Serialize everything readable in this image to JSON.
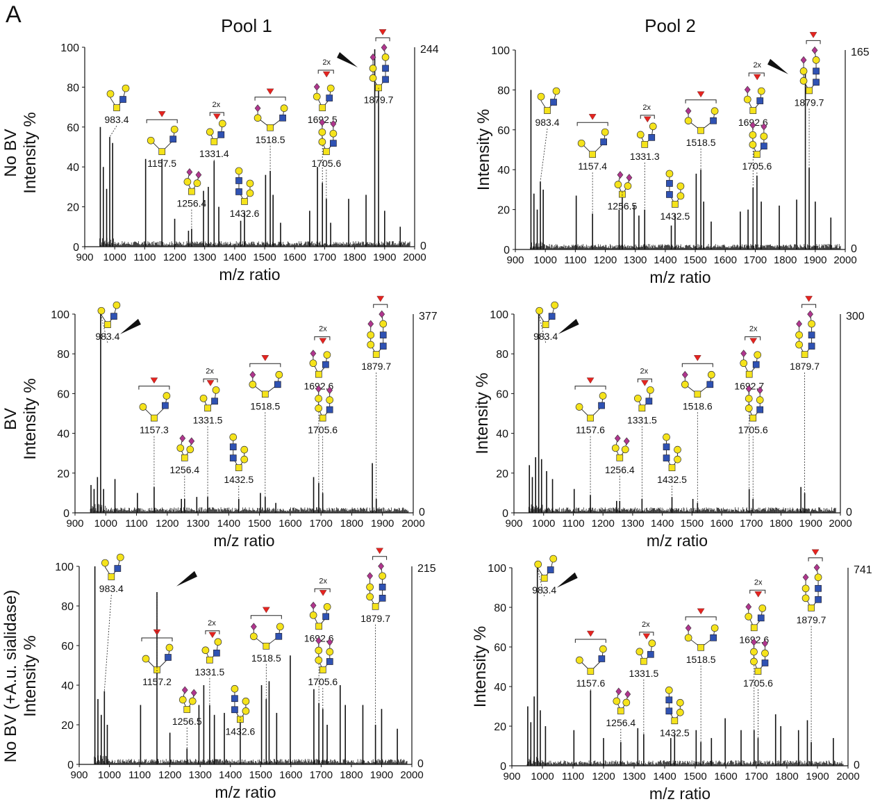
{
  "figure": {
    "panel_letter": "A",
    "columns": [
      "Pool 1",
      "Pool 2"
    ],
    "rows": [
      {
        "condition": "No BV",
        "ylabel": "Intensity %"
      },
      {
        "condition": "BV",
        "ylabel": "Intensity %"
      },
      {
        "condition": "No BV (+A.u. sialidase)",
        "ylabel": "Intensity %"
      }
    ]
  },
  "colors": {
    "spectrum": "#111111",
    "hexose": "#f5e31b",
    "hexnac": "#2f52b3",
    "fucose": "#e5231f",
    "sialic_acid": "#b0358e"
  },
  "chart_data": [
    {
      "type": "line",
      "panel": "Pool 1 - No BV",
      "xlabel": "m/z ratio",
      "ylabel": "Intensity %",
      "xlim": [
        900,
        2000
      ],
      "ylim": [
        0,
        100
      ],
      "xticks": [
        900,
        1000,
        1100,
        1200,
        1300,
        1400,
        1500,
        1600,
        1700,
        1800,
        1900,
        2000
      ],
      "yticks": [
        0,
        20,
        40,
        60,
        80,
        100
      ],
      "right_axis": {
        "max_label": "244",
        "min_label": "0"
      },
      "highlight_peak": 1879.7,
      "peaks": [
        [
          952,
          60
        ],
        [
          962,
          40
        ],
        [
          973,
          29
        ],
        [
          983.4,
          55
        ],
        [
          993,
          52
        ],
        [
          1103,
          44
        ],
        [
          1157.5,
          44
        ],
        [
          1200,
          14
        ],
        [
          1246,
          8
        ],
        [
          1256.4,
          9
        ],
        [
          1296,
          28
        ],
        [
          1312,
          30
        ],
        [
          1331.4,
          43
        ],
        [
          1347,
          20
        ],
        [
          1420,
          13
        ],
        [
          1432.6,
          17
        ],
        [
          1503,
          36
        ],
        [
          1518.5,
          38
        ],
        [
          1528,
          26
        ],
        [
          1553,
          12
        ],
        [
          1650,
          18
        ],
        [
          1676,
          40
        ],
        [
          1692.5,
          32
        ],
        [
          1705.6,
          24
        ],
        [
          1720,
          12
        ],
        [
          1780,
          24
        ],
        [
          1838,
          26
        ],
        [
          1867,
          99
        ],
        [
          1879.7,
          80
        ],
        [
          1900,
          18
        ],
        [
          1952,
          10
        ]
      ],
      "labels": [
        {
          "mz": 983.4,
          "text": "983.4",
          "ann": ""
        },
        {
          "mz": 1157.5,
          "text": "1157.5",
          "ann": ""
        },
        {
          "mz": 1256.4,
          "text": "1256.4",
          "ann": ""
        },
        {
          "mz": 1331.4,
          "text": "1331.4",
          "ann": "2x"
        },
        {
          "mz": 1432.6,
          "text": "1432.6",
          "ann": ""
        },
        {
          "mz": 1518.5,
          "text": "1518.5",
          "ann": ""
        },
        {
          "mz": 1692.5,
          "text": "1692.5",
          "ann": "2x"
        },
        {
          "mz": 1705.6,
          "text": "1705.6",
          "ann": ""
        },
        {
          "mz": 1879.7,
          "text": "1879.7",
          "ann": ""
        }
      ]
    },
    {
      "type": "line",
      "panel": "Pool 2 - No BV",
      "xlabel": "m/z ratio",
      "ylabel": "Intensity %",
      "xlim": [
        900,
        2000
      ],
      "ylim": [
        0,
        100
      ],
      "xticks": [
        900,
        1000,
        1100,
        1200,
        1300,
        1400,
        1500,
        1600,
        1700,
        1800,
        1900,
        2000
      ],
      "yticks": [
        0,
        20,
        40,
        60,
        80,
        100
      ],
      "right_axis": {
        "max_label": "165",
        "min_label": "0"
      },
      "highlight_peak": 1879.7,
      "peaks": [
        [
          952,
          80
        ],
        [
          962,
          28
        ],
        [
          973,
          20
        ],
        [
          983.4,
          34
        ],
        [
          993,
          30
        ],
        [
          1103,
          27
        ],
        [
          1157.4,
          18
        ],
        [
          1246,
          20
        ],
        [
          1256.5,
          29
        ],
        [
          1296,
          22
        ],
        [
          1312,
          17
        ],
        [
          1331.3,
          20
        ],
        [
          1420,
          12
        ],
        [
          1432.5,
          18
        ],
        [
          1503,
          38
        ],
        [
          1518.5,
          40
        ],
        [
          1528,
          24
        ],
        [
          1553,
          14
        ],
        [
          1650,
          19
        ],
        [
          1676,
          20
        ],
        [
          1692.6,
          31
        ],
        [
          1705.6,
          37
        ],
        [
          1720,
          24
        ],
        [
          1780,
          22
        ],
        [
          1838,
          25
        ],
        [
          1867,
          90
        ],
        [
          1879.7,
          41
        ],
        [
          1900,
          24
        ],
        [
          1952,
          16
        ]
      ],
      "labels": [
        {
          "mz": 983.4,
          "text": "983.4",
          "ann": ""
        },
        {
          "mz": 1157.4,
          "text": "1157.4",
          "ann": ""
        },
        {
          "mz": 1256.5,
          "text": "1256.5",
          "ann": ""
        },
        {
          "mz": 1331.3,
          "text": "1331.3",
          "ann": "2x"
        },
        {
          "mz": 1432.5,
          "text": "1432.5",
          "ann": ""
        },
        {
          "mz": 1518.5,
          "text": "1518.5",
          "ann": ""
        },
        {
          "mz": 1692.6,
          "text": "1692.6",
          "ann": "2x"
        },
        {
          "mz": 1705.6,
          "text": "1705.6",
          "ann": ""
        },
        {
          "mz": 1879.7,
          "text": "1879.7",
          "ann": ""
        }
      ]
    },
    {
      "type": "line",
      "panel": "Pool 1 - BV",
      "xlabel": "m/z ratio",
      "ylabel": "Intensity %",
      "xlim": [
        900,
        2000
      ],
      "ylim": [
        0,
        100
      ],
      "xticks": [
        900,
        1000,
        1100,
        1200,
        1300,
        1400,
        1500,
        1600,
        1700,
        1800,
        1900,
        2000
      ],
      "yticks": [
        0,
        20,
        40,
        60,
        80,
        100
      ],
      "right_axis": {
        "max_label": "377",
        "min_label": "0"
      },
      "highlight_peak": 983.4,
      "peaks": [
        [
          952,
          14
        ],
        [
          962,
          12
        ],
        [
          973,
          18
        ],
        [
          983.4,
          100
        ],
        [
          993,
          12
        ],
        [
          1030,
          17
        ],
        [
          1103,
          10
        ],
        [
          1157.3,
          13
        ],
        [
          1246,
          7
        ],
        [
          1256.4,
          7
        ],
        [
          1296,
          8
        ],
        [
          1331.5,
          8
        ],
        [
          1432.5,
          7
        ],
        [
          1503,
          10
        ],
        [
          1518.5,
          8
        ],
        [
          1553,
          5
        ],
        [
          1676,
          18
        ],
        [
          1692.6,
          15
        ],
        [
          1705.6,
          10
        ],
        [
          1867,
          25
        ],
        [
          1879.7,
          7
        ]
      ],
      "labels": [
        {
          "mz": 983.4,
          "text": "983.4",
          "ann": ""
        },
        {
          "mz": 1157.3,
          "text": "1157.3",
          "ann": ""
        },
        {
          "mz": 1256.4,
          "text": "1256.4",
          "ann": ""
        },
        {
          "mz": 1331.5,
          "text": "1331.5",
          "ann": "2x"
        },
        {
          "mz": 1432.5,
          "text": "1432.5",
          "ann": ""
        },
        {
          "mz": 1518.5,
          "text": "1518.5",
          "ann": ""
        },
        {
          "mz": 1692.6,
          "text": "1692.6",
          "ann": "2x"
        },
        {
          "mz": 1705.6,
          "text": "1705.6",
          "ann": ""
        },
        {
          "mz": 1879.7,
          "text": "1879.7",
          "ann": ""
        }
      ]
    },
    {
      "type": "line",
      "panel": "Pool 2 - BV",
      "xlabel": "m/z ratio",
      "ylabel": "Intensity %",
      "xlim": [
        900,
        2000
      ],
      "ylim": [
        0,
        100
      ],
      "xticks": [
        900,
        1000,
        1100,
        1200,
        1300,
        1400,
        1500,
        1600,
        1700,
        1800,
        1900,
        2000
      ],
      "yticks": [
        0,
        20,
        40,
        60,
        80,
        100
      ],
      "right_axis": {
        "max_label": "300",
        "min_label": "0"
      },
      "highlight_peak": 983.4,
      "peaks": [
        [
          952,
          24
        ],
        [
          962,
          18
        ],
        [
          973,
          28
        ],
        [
          983.4,
          100
        ],
        [
          993,
          27
        ],
        [
          1010,
          21
        ],
        [
          1030,
          17
        ],
        [
          1103,
          12
        ],
        [
          1157.6,
          9
        ],
        [
          1246,
          6
        ],
        [
          1256.4,
          6
        ],
        [
          1331.5,
          7
        ],
        [
          1432.5,
          8
        ],
        [
          1503,
          7
        ],
        [
          1518.6,
          5
        ],
        [
          1692.7,
          12
        ],
        [
          1705.6,
          7
        ],
        [
          1867,
          13
        ],
        [
          1879.7,
          10
        ]
      ],
      "labels": [
        {
          "mz": 983.4,
          "text": "983.4",
          "ann": ""
        },
        {
          "mz": 1157.6,
          "text": "1157.6",
          "ann": ""
        },
        {
          "mz": 1256.4,
          "text": "1256.4",
          "ann": ""
        },
        {
          "mz": 1331.5,
          "text": "1331.5",
          "ann": "2x"
        },
        {
          "mz": 1432.5,
          "text": "1432.5",
          "ann": ""
        },
        {
          "mz": 1518.6,
          "text": "1518.6",
          "ann": ""
        },
        {
          "mz": 1692.7,
          "text": "1692.7",
          "ann": "2x"
        },
        {
          "mz": 1705.6,
          "text": "1705.6",
          "ann": ""
        },
        {
          "mz": 1879.7,
          "text": "1879.7",
          "ann": ""
        }
      ]
    },
    {
      "type": "line",
      "panel": "Pool 1 - No BV (+A.u. sialidase)",
      "xlabel": "m/z ratio",
      "ylabel": "Intensity %",
      "xlim": [
        900,
        2000
      ],
      "ylim": [
        0,
        100
      ],
      "xticks": [
        900,
        1000,
        1100,
        1200,
        1300,
        1400,
        1500,
        1600,
        1700,
        1800,
        1900,
        2000
      ],
      "yticks": [
        0,
        20,
        40,
        60,
        80,
        100
      ],
      "right_axis": {
        "max_label": "215",
        "min_label": "0"
      },
      "highlight_peak": 1157.2,
      "peaks": [
        [
          952,
          100
        ],
        [
          962,
          33
        ],
        [
          973,
          25
        ],
        [
          983.4,
          37
        ],
        [
          993,
          20
        ],
        [
          1103,
          30
        ],
        [
          1157.2,
          87
        ],
        [
          1200,
          16
        ],
        [
          1256.5,
          8
        ],
        [
          1296,
          30
        ],
        [
          1312,
          40
        ],
        [
          1331.5,
          30
        ],
        [
          1347,
          25
        ],
        [
          1380,
          26
        ],
        [
          1432.6,
          24
        ],
        [
          1503,
          40
        ],
        [
          1518.5,
          33
        ],
        [
          1528,
          42
        ],
        [
          1553,
          26
        ],
        [
          1598,
          55
        ],
        [
          1676,
          38
        ],
        [
          1692.6,
          31
        ],
        [
          1705.6,
          28
        ],
        [
          1720,
          20
        ],
        [
          1763,
          40
        ],
        [
          1780,
          30
        ],
        [
          1838,
          30
        ],
        [
          1879.7,
          20
        ],
        [
          1900,
          28
        ],
        [
          1952,
          18
        ]
      ],
      "labels": [
        {
          "mz": 983.4,
          "text": "983.4",
          "ann": ""
        },
        {
          "mz": 1157.2,
          "text": "1157.2",
          "ann": ""
        },
        {
          "mz": 1256.5,
          "text": "1256.5",
          "ann": ""
        },
        {
          "mz": 1331.5,
          "text": "1331.5",
          "ann": "2x"
        },
        {
          "mz": 1432.6,
          "text": "1432.6",
          "ann": ""
        },
        {
          "mz": 1518.5,
          "text": "1518.5",
          "ann": ""
        },
        {
          "mz": 1692.6,
          "text": "1692.6",
          "ann": "2x"
        },
        {
          "mz": 1705.6,
          "text": "1705.6",
          "ann": ""
        },
        {
          "mz": 1879.7,
          "text": "1879.7",
          "ann": ""
        }
      ]
    },
    {
      "type": "line",
      "panel": "Pool 2 - No BV (+A.u. sialidase)",
      "xlabel": "m/z ratio",
      "ylabel": "Intensity %",
      "xlim": [
        900,
        2000
      ],
      "ylim": [
        0,
        100
      ],
      "xticks": [
        900,
        1000,
        1100,
        1200,
        1300,
        1400,
        1500,
        1600,
        1700,
        1800,
        1900,
        2000
      ],
      "yticks": [
        0,
        20,
        40,
        60,
        80,
        100
      ],
      "right_axis": {
        "max_label": "741",
        "min_label": "0"
      },
      "highlight_peak": 983.4,
      "peaks": [
        [
          952,
          30
        ],
        [
          962,
          22
        ],
        [
          973,
          35
        ],
        [
          983.4,
          100
        ],
        [
          993,
          28
        ],
        [
          1010,
          20
        ],
        [
          1103,
          18
        ],
        [
          1157.6,
          38
        ],
        [
          1200,
          14
        ],
        [
          1256.4,
          12
        ],
        [
          1312,
          19
        ],
        [
          1331.5,
          16
        ],
        [
          1420,
          14
        ],
        [
          1432.5,
          16
        ],
        [
          1503,
          18
        ],
        [
          1518.5,
          12
        ],
        [
          1553,
          14
        ],
        [
          1598,
          24
        ],
        [
          1650,
          18
        ],
        [
          1692.6,
          18
        ],
        [
          1705.6,
          14
        ],
        [
          1763,
          26
        ],
        [
          1780,
          20
        ],
        [
          1838,
          18
        ],
        [
          1867,
          23
        ],
        [
          1879.7,
          12
        ],
        [
          1952,
          14
        ]
      ],
      "labels": [
        {
          "mz": 983.4,
          "text": "983.4",
          "ann": ""
        },
        {
          "mz": 1157.6,
          "text": "1157.6",
          "ann": ""
        },
        {
          "mz": 1256.4,
          "text": "1256.4",
          "ann": ""
        },
        {
          "mz": 1331.5,
          "text": "1331.5",
          "ann": "2x"
        },
        {
          "mz": 1432.5,
          "text": "1432.5",
          "ann": ""
        },
        {
          "mz": 1518.5,
          "text": "1518.5",
          "ann": ""
        },
        {
          "mz": 1692.6,
          "text": "1692.6",
          "ann": "2x"
        },
        {
          "mz": 1705.6,
          "text": "1705.6",
          "ann": ""
        },
        {
          "mz": 1879.7,
          "text": "1879.7",
          "ann": ""
        }
      ]
    }
  ]
}
